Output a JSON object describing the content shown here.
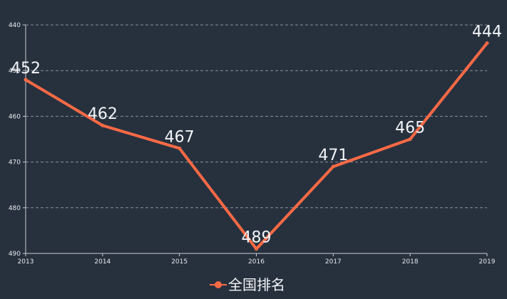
{
  "chart_data": {
    "type": "line",
    "title": "",
    "xlabel": "",
    "ylabel": "",
    "categories": [
      "2013",
      "2014",
      "2015",
      "2016",
      "2017",
      "2018",
      "2019"
    ],
    "series": [
      {
        "name": "全国排名",
        "values": [
          452,
          462,
          467,
          489,
          471,
          465,
          444
        ]
      }
    ],
    "yaxis": {
      "inverse": true,
      "ylim": [
        440,
        490
      ],
      "ticks": [
        440,
        450,
        460,
        470,
        480,
        490
      ]
    },
    "grid": true,
    "grid_style": "dashed",
    "legend_position": "bottom-center",
    "colors": {
      "line": "#ff6a45",
      "background": "#27313e",
      "grid": "#8a929c",
      "axis": "#c9cdd3",
      "text": "#f2f4f7"
    }
  }
}
